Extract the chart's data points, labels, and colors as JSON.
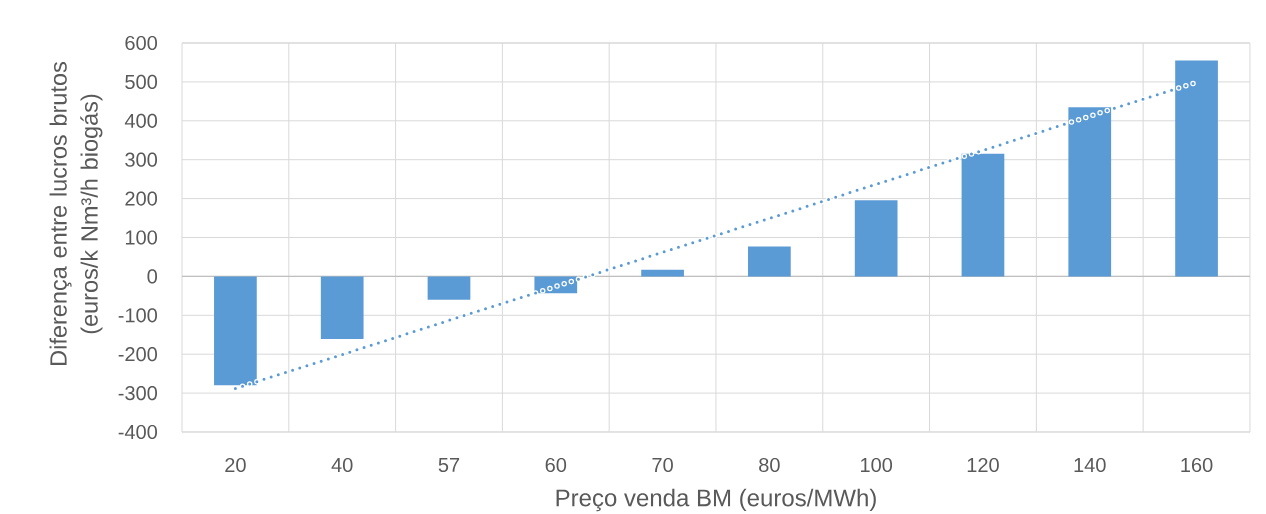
{
  "chart_data": {
    "type": "bar",
    "xlabel": "Preço venda BM (euros/MWh)",
    "ylabel": "Diferença entre lucros brutos (euros/k Nm³/h biogás)",
    "categories": [
      "20",
      "40",
      "57",
      "60",
      "70",
      "80",
      "100",
      "120",
      "140",
      "160"
    ],
    "series": [
      {
        "color": "#5b9bd5",
        "values": [
          -280,
          -161,
          -60,
          -43,
          17,
          77,
          196,
          315,
          435,
          555
        ]
      },
      {
        "type": "line",
        "line_style": "dotted",
        "color": "#5b9bd5",
        "values": [
          -288,
          -201,
          -113,
          -26,
          62,
          149,
          237,
          324,
          412,
          499
        ]
      }
    ],
    "ylim": [
      -400,
      600
    ],
    "yticks": [
      -400,
      -300,
      -200,
      -100,
      0,
      100,
      200,
      300,
      400,
      500,
      600
    ],
    "grid": true
  }
}
